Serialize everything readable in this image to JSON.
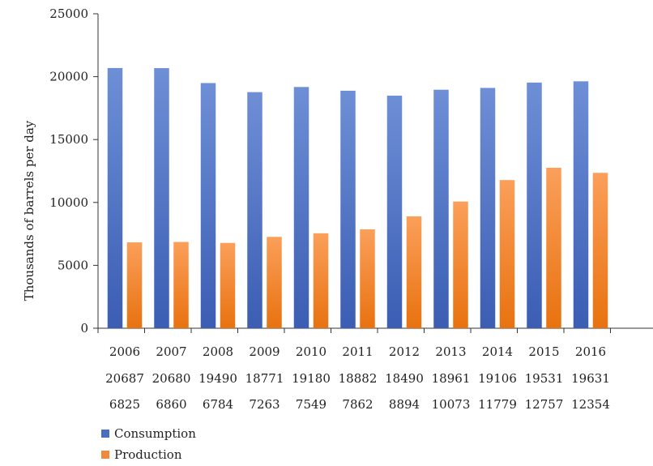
{
  "chart_data": {
    "type": "bar",
    "title": "",
    "xlabel": "",
    "ylabel": "Thousands of barrels per day",
    "ylim": [
      0,
      25000
    ],
    "yticks": [
      0,
      5000,
      10000,
      15000,
      20000,
      25000
    ],
    "grid": false,
    "legend_position": "bottom-left",
    "categories": [
      "2006",
      "2007",
      "2008",
      "2009",
      "2010",
      "2011",
      "2012",
      "2013",
      "2014",
      "2015",
      "2016"
    ],
    "series": [
      {
        "name": "Consumption",
        "color": "#4a6fc0",
        "values": [
          20687,
          20680,
          19490,
          18771,
          19180,
          18882,
          18490,
          18961,
          19106,
          19531,
          19631
        ]
      },
      {
        "name": "Production",
        "color": "#f08a3a",
        "values": [
          6825,
          6860,
          6784,
          7263,
          7549,
          7862,
          8894,
          10073,
          11779,
          12757,
          12354
        ]
      }
    ]
  }
}
